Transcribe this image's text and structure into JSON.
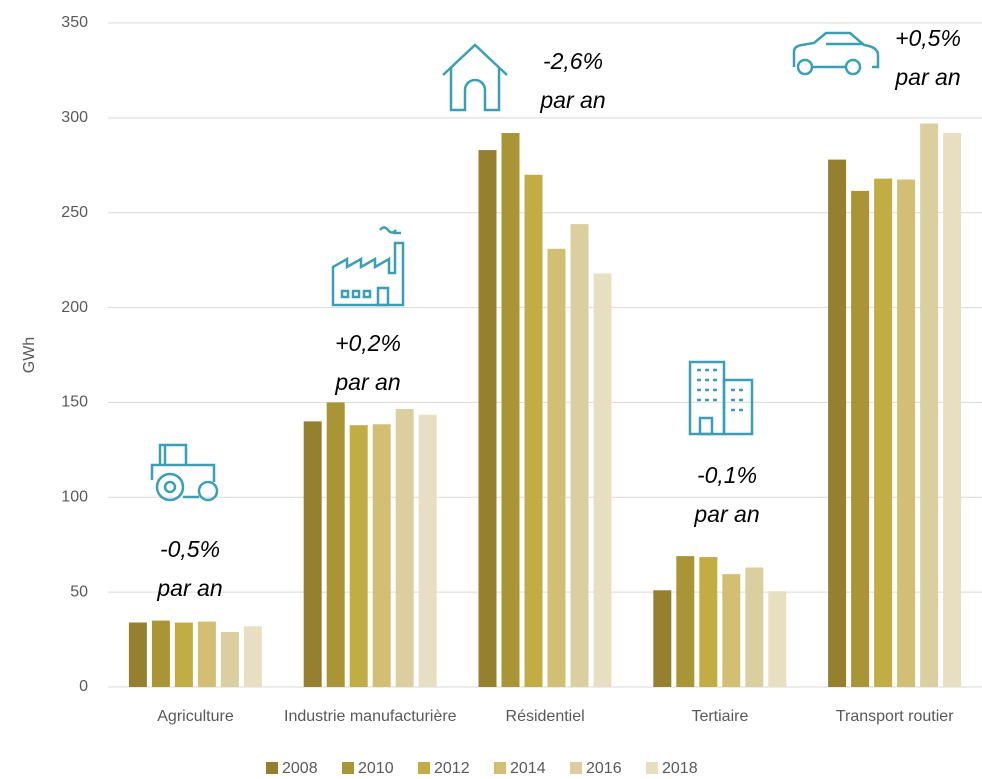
{
  "chart_data": {
    "type": "bar",
    "y_label": "GWh",
    "categories": [
      "Agriculture",
      "Industrie manufacturière",
      "Résidentiel",
      "Tertiaire",
      "Transport routier"
    ],
    "series": [
      {
        "name": "2008",
        "color": "#958030",
        "values": [
          34,
          140,
          283,
          51,
          278
        ]
      },
      {
        "name": "2010",
        "color": "#a99535",
        "values": [
          35,
          150,
          292,
          69,
          261.5
        ]
      },
      {
        "name": "2012",
        "color": "#c2ad45",
        "values": [
          34,
          138,
          270,
          68.5,
          268
        ]
      },
      {
        "name": "2014",
        "color": "#d3bf74",
        "values": [
          34.5,
          138.5,
          231,
          59.5,
          267.5
        ]
      },
      {
        "name": "2016",
        "color": "#dccf9f",
        "values": [
          29,
          146.5,
          244,
          63,
          297
        ]
      },
      {
        "name": "2018",
        "color": "#e8dfc3",
        "values": [
          32,
          143.5,
          218,
          50.5,
          292
        ]
      }
    ],
    "annotations": [
      {
        "lines": [
          "-0,5%",
          "par an"
        ]
      },
      {
        "lines": [
          "+0,2%",
          "par an"
        ]
      },
      {
        "lines": [
          "-2,6%",
          "par an"
        ]
      },
      {
        "lines": [
          "-0,1%",
          "par an"
        ]
      },
      {
        "lines": [
          "+0,5%",
          "par an"
        ]
      }
    ],
    "ylim": [
      0,
      350
    ],
    "yticks": [
      0,
      50,
      100,
      150,
      200,
      250,
      300,
      350
    ],
    "grid": true
  }
}
